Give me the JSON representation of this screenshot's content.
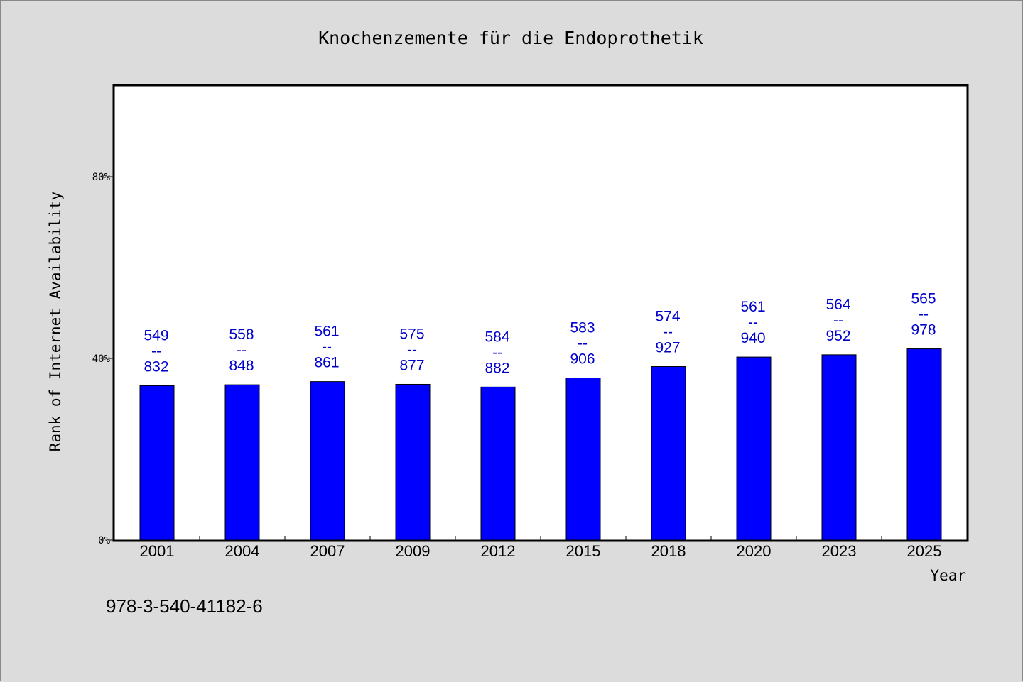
{
  "chart_data": {
    "type": "bar",
    "title": "Knochenzemente für die Endoprothetik",
    "xlabel": "Year",
    "ylabel": "Rank of Internet Availability",
    "footnote": "978-3-540-41182-6",
    "categories": [
      "2001",
      "2004",
      "2007",
      "2009",
      "2012",
      "2015",
      "2018",
      "2020",
      "2023",
      "2025"
    ],
    "values": [
      34,
      34.2,
      34.9,
      34.3,
      33.7,
      35.7,
      38.2,
      40.3,
      40.8,
      42.1
    ],
    "labels_top": [
      "549",
      "558",
      "561",
      "575",
      "584",
      "583",
      "574",
      "561",
      "564",
      "565"
    ],
    "labels_bottom": [
      "832",
      "848",
      "861",
      "877",
      "882",
      "906",
      "927",
      "940",
      "952",
      "978"
    ],
    "label_separator": "--",
    "ylim": [
      0,
      100
    ],
    "yticks": [
      {
        "value": 0,
        "label": "0%"
      },
      {
        "value": 40,
        "label": "40%"
      },
      {
        "value": 80,
        "label": "80%"
      }
    ],
    "grid": false,
    "colors": {
      "bar": "#0000ff",
      "bar_stroke": "#000000",
      "data_label": "#0000cc",
      "plot_bg": "#ffffff",
      "page_bg": "#dcdcdc"
    }
  }
}
